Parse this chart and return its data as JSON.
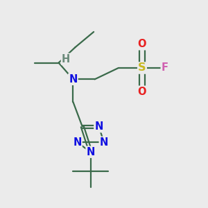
{
  "bg_color": "#ebebeb",
  "atom_colors": {
    "C": "#4a7a5a",
    "N": "#1010e0",
    "S": "#c8b820",
    "O": "#e82020",
    "F": "#d060b0",
    "H": "#6a8a7a"
  },
  "font_size": 10.5,
  "bond_color": "#3a6a4a",
  "bond_width": 1.6
}
